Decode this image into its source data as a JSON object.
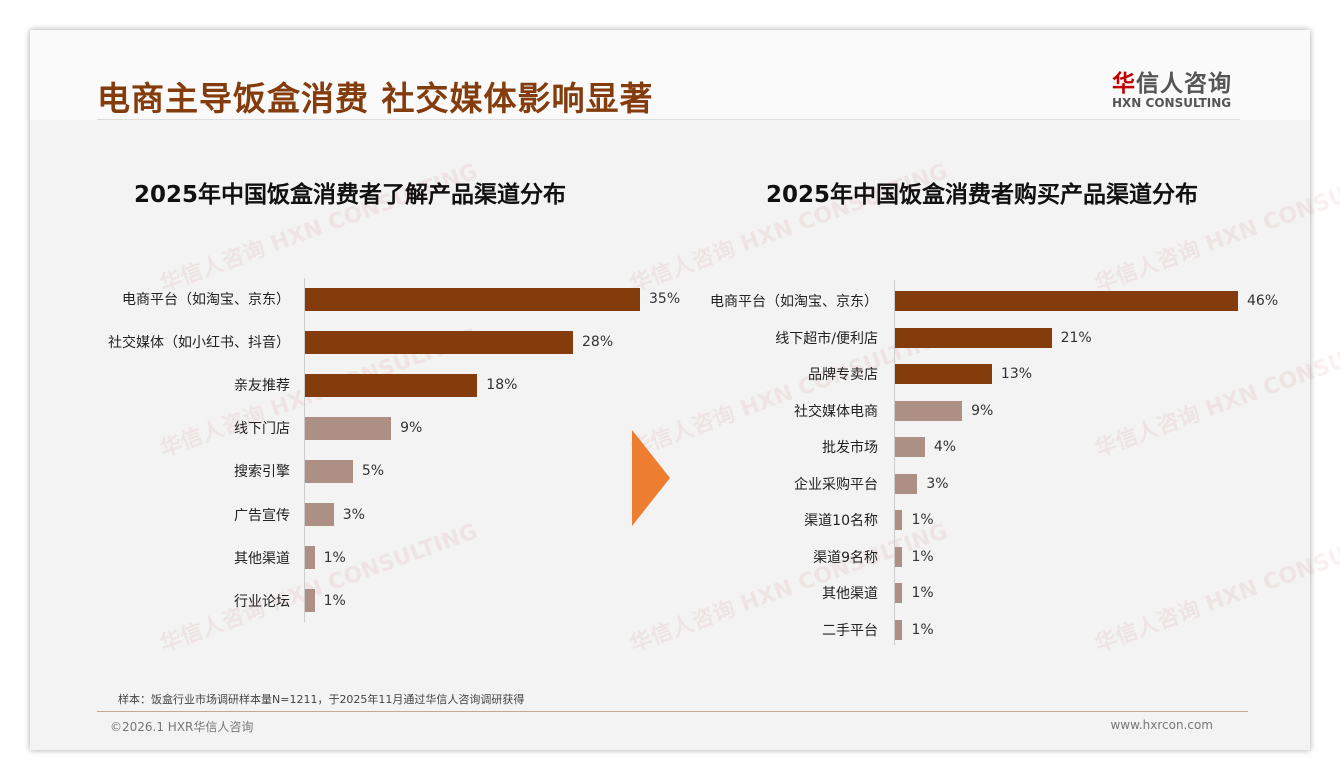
{
  "header": {
    "title": "电商主导饭盒消费 社交媒体影响显著",
    "logo_cn_red": "华",
    "logo_cn": "信人咨询",
    "logo_en": "HXN CONSULTING"
  },
  "colors": {
    "primary": "#843c0c",
    "secondary": "#ad8f85",
    "arrow": "#ed7d31"
  },
  "chart_data": [
    {
      "type": "bar",
      "orientation": "horizontal",
      "title": "2025年中国饭盒消费者了解产品渠道分布",
      "unit": "%",
      "categories": [
        "电商平台（如淘宝、京东）",
        "社交媒体（如小红书、抖音）",
        "亲友推荐",
        "线下门店",
        "搜索引擎",
        "广告宣传",
        "其他渠道",
        "行业论坛"
      ],
      "values": [
        35,
        28,
        18,
        9,
        5,
        3,
        1,
        1
      ],
      "highlight_top": 3,
      "xlim": [
        0,
        35
      ]
    },
    {
      "type": "bar",
      "orientation": "horizontal",
      "title": "2025年中国饭盒消费者购买产品渠道分布",
      "unit": "%",
      "categories": [
        "电商平台（如淘宝、京东）",
        "线下超市/便利店",
        "品牌专卖店",
        "社交媒体电商",
        "批发市场",
        "企业采购平台",
        "渠道10名称",
        "渠道9名称",
        "其他渠道",
        "二手平台"
      ],
      "values": [
        46,
        21,
        13,
        9,
        4,
        3,
        1,
        1,
        1,
        1
      ],
      "highlight_top": 3,
      "xlim": [
        0,
        46
      ]
    }
  ],
  "watermark": "华信人咨询 HXN CONSULTING",
  "footer": {
    "note": "样本：饭盒行业市场调研样本量N=1211，于2025年11月通过华信人咨询调研获得",
    "copyright": "©2026.1 HXR华信人咨询",
    "site": "www.hxrcon.com"
  }
}
